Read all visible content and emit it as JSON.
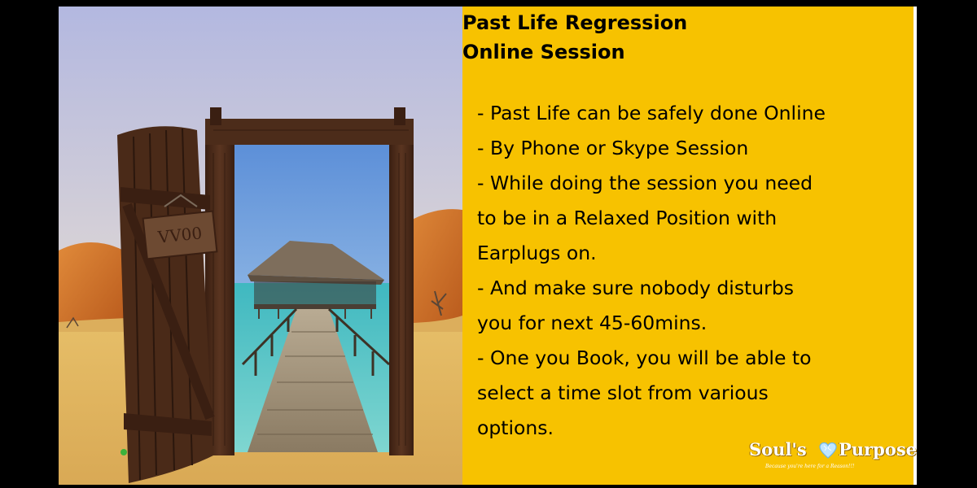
{
  "title": {
    "line1": "Past Life Regression",
    "line2": "Online Session"
  },
  "body_lines": [
    "- Past Life can be safely done Online",
    "- By Phone or Skype Session",
    "- While doing the session you need",
    "to be in a Relaxed Position with",
    "Earplugs on.",
    "- And make sure nobody disturbs",
    "you for next 45-60mins.",
    "- One you Book, you will be able to",
    "select a time slot from various",
    "options."
  ],
  "logo": {
    "word1": "Soul's",
    "word2": "Purpose",
    "tagline": "Because you're here for a Reason!!!"
  },
  "photo": {
    "sign_text": "VV00"
  },
  "colors": {
    "panel": "#f7c200",
    "text": "#000000",
    "sky_top": "#b9bde4",
    "sand": "#e1b660",
    "water": "#4cc3c1",
    "door_wood": "#4a2a18"
  }
}
